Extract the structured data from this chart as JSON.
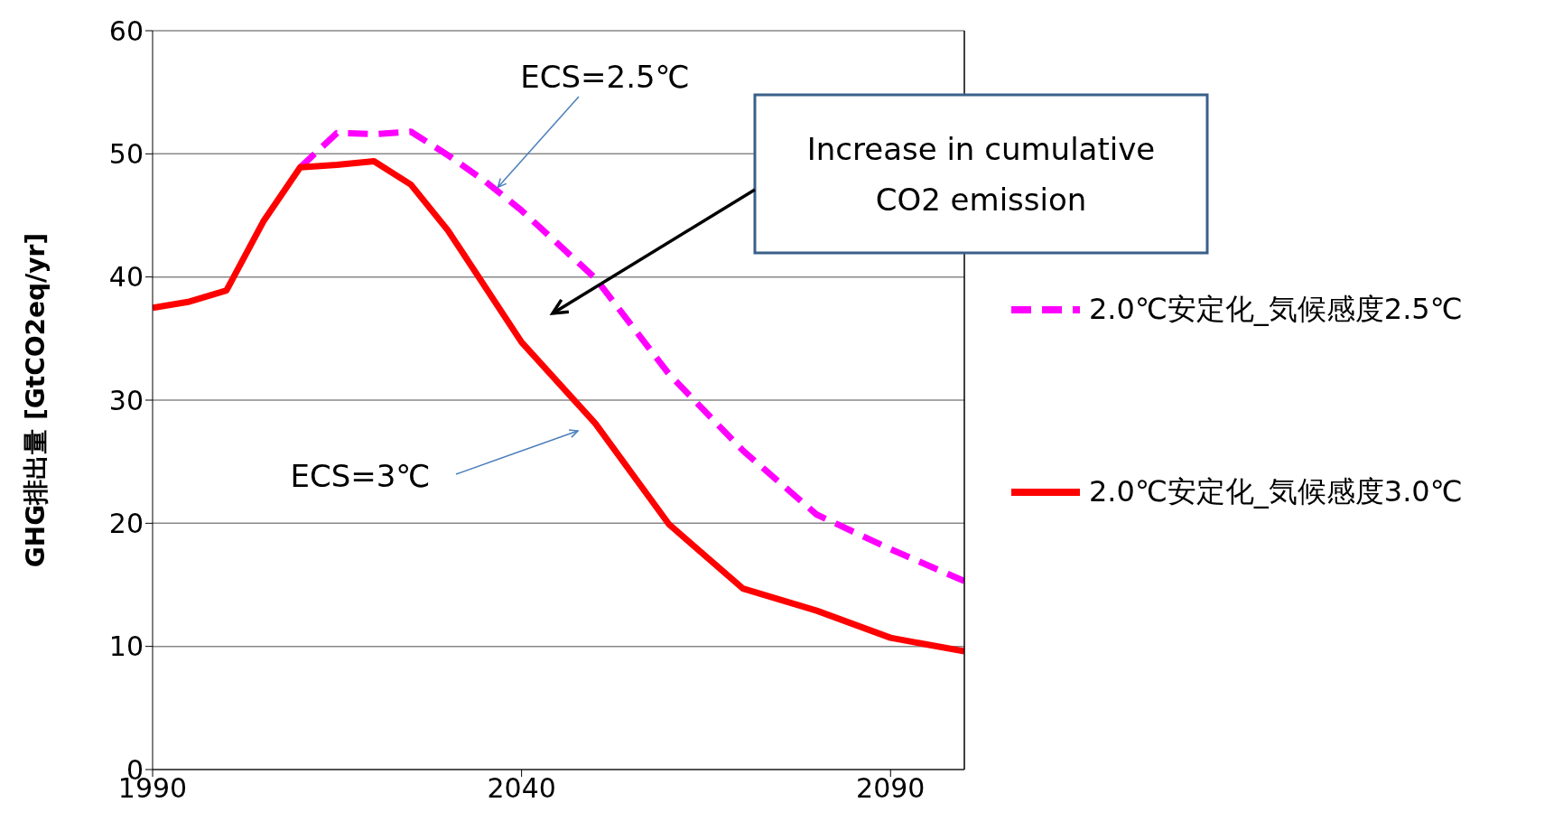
{
  "chart_data": {
    "type": "line",
    "ylabel": "GHG排出量 [GtCO2eq/yr]",
    "xlim": [
      1990,
      2100
    ],
    "xticks": [
      1990,
      2040,
      2090
    ],
    "ylim": [
      0,
      60
    ],
    "yticks": [
      0,
      10,
      20,
      30,
      40,
      50,
      60
    ],
    "grid": "y",
    "legend": "right",
    "marker": "none",
    "series": [
      {
        "name": "2.0℃安定化_気候感度2.5℃",
        "color": "#ff00ff",
        "line_style": "dashed",
        "x": [
          2010,
          2015,
          2020,
          2025,
          2030,
          2035,
          2040,
          2050,
          2060,
          2070,
          2080,
          2090,
          2100
        ],
        "values": [
          48.9,
          51.7,
          51.6,
          51.8,
          49.9,
          47.8,
          45.4,
          39.9,
          32.1,
          25.9,
          20.7,
          17.9,
          15.3
        ]
      },
      {
        "name": "2.0℃安定化_気候感度3.0℃",
        "color": "#ff0000",
        "line_style": "solid",
        "x": [
          1990,
          1995,
          2000,
          2005,
          2010,
          2015,
          2020,
          2025,
          2030,
          2040,
          2050,
          2060,
          2070,
          2080,
          2090,
          2100
        ],
        "values": [
          37.5,
          38.0,
          38.9,
          44.5,
          48.9,
          49.1,
          49.4,
          47.5,
          43.8,
          34.7,
          28.1,
          19.9,
          14.7,
          12.9,
          10.7,
          9.6
        ]
      }
    ],
    "annotations": [
      {
        "text": "ECS=2.5℃",
        "x": 2036.8,
        "y": 47.3
      },
      "ECS=3℃",
      "Increase in cumulative CO2 emission"
    ]
  }
}
